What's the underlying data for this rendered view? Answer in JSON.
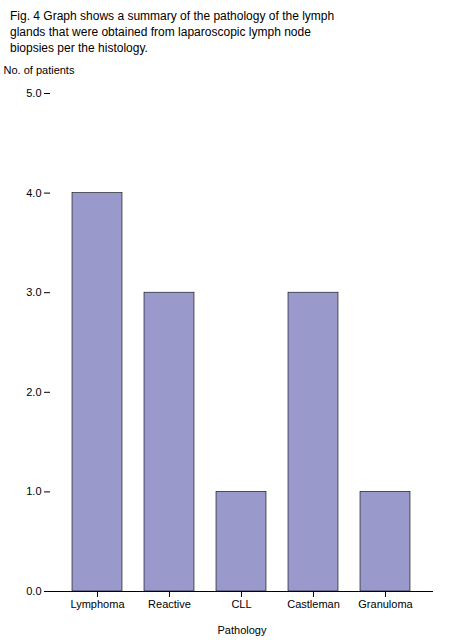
{
  "chart_data": {
    "type": "bar",
    "title": "Fig. 4 Graph shows a summary of the pathology of the lymph\nglands that were obtained from laparoscopic lymph node\nbiopsies per the histology.",
    "categories": [
      "Lymphoma",
      "Reactive",
      "CLL",
      "Castleman",
      "Granuloma"
    ],
    "values": [
      4,
      3,
      1,
      3,
      1
    ],
    "color": "#9999cc",
    "xlabel": "Pathology",
    "ylabel": "No. of patients",
    "ylim": [
      0,
      5
    ],
    "yticks": [
      0,
      1,
      2,
      3,
      4,
      5
    ],
    "grid": false
  }
}
